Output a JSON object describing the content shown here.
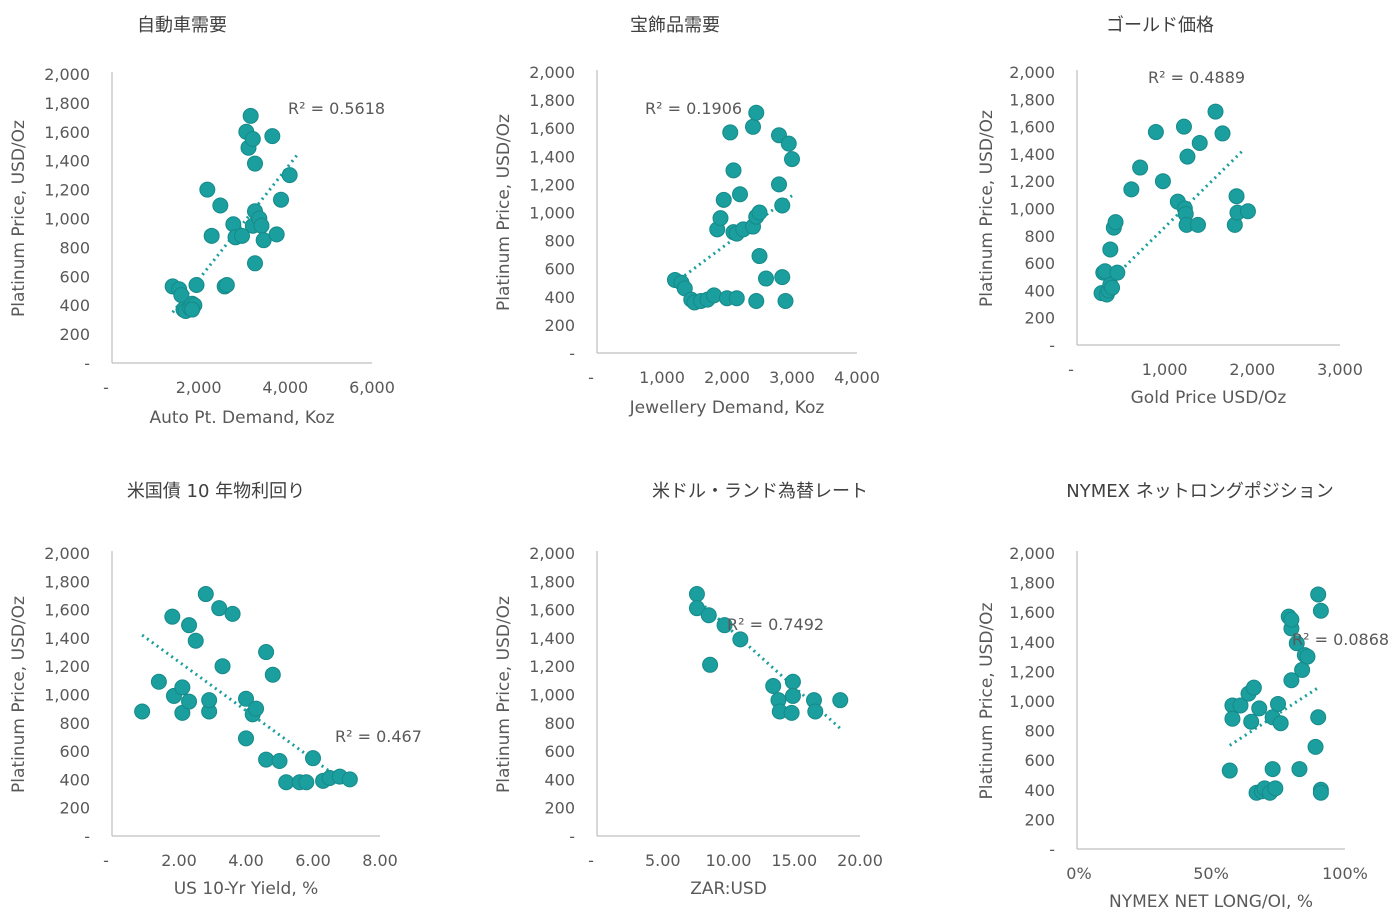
{
  "chart_data": [
    {
      "type": "scatter",
      "title": "自動車需要",
      "xlabel": "Auto Pt. Demand, Koz",
      "ylabel": "Platinum Price, USD/Oz",
      "xlim": [
        0,
        6000
      ],
      "ylim": [
        0,
        2000
      ],
      "xticks": [
        "-",
        "2,000",
        "4,000",
        "6,000"
      ],
      "yticks": [
        "-",
        "200",
        "400",
        "600",
        "800",
        "1,000",
        "1,200",
        "1,400",
        "1,600",
        "1,800",
        "2,000"
      ],
      "r2_label": "R² = 0.5618",
      "trendline": {
        "x": [
          1400,
          4300
        ],
        "y": [
          350,
          1450
        ]
      },
      "points": [
        [
          1400,
          530
        ],
        [
          1550,
          510
        ],
        [
          1600,
          470
        ],
        [
          1650,
          370
        ],
        [
          1700,
          360
        ],
        [
          1800,
          380
        ],
        [
          1850,
          410
        ],
        [
          1900,
          400
        ],
        [
          1950,
          540
        ],
        [
          1850,
          370
        ],
        [
          2200,
          1200
        ],
        [
          2300,
          880
        ],
        [
          2500,
          1090
        ],
        [
          2600,
          530
        ],
        [
          2650,
          540
        ],
        [
          2800,
          960
        ],
        [
          2850,
          870
        ],
        [
          3000,
          880
        ],
        [
          3100,
          1600
        ],
        [
          3150,
          1490
        ],
        [
          3200,
          1710
        ],
        [
          3250,
          1550
        ],
        [
          3300,
          1380
        ],
        [
          3250,
          950
        ],
        [
          3300,
          1050
        ],
        [
          3400,
          1000
        ],
        [
          3450,
          950
        ],
        [
          3500,
          850
        ],
        [
          3300,
          690
        ],
        [
          3700,
          1570
        ],
        [
          3800,
          890
        ],
        [
          3900,
          1130
        ],
        [
          4100,
          1300
        ]
      ]
    },
    {
      "type": "scatter",
      "title": "宝飾品需要",
      "xlabel": "Jewellery Demand, Koz",
      "ylabel": "Platinum Price, USD/Oz",
      "xlim": [
        0,
        4000
      ],
      "ylim": [
        0,
        2000
      ],
      "xticks": [
        "-",
        "1,000",
        "2,000",
        "3,000",
        "4,000"
      ],
      "yticks": [
        "-",
        "200",
        "400",
        "600",
        "800",
        "1,000",
        "1,200",
        "1,400",
        "1,600",
        "1,800",
        "2,000"
      ],
      "r2_label": "R² = 0.1906",
      "trendline": {
        "x": [
          1200,
          3000
        ],
        "y": [
          500,
          1120
        ]
      },
      "points": [
        [
          1200,
          520
        ],
        [
          1300,
          500
        ],
        [
          1350,
          460
        ],
        [
          1450,
          380
        ],
        [
          1500,
          360
        ],
        [
          1600,
          370
        ],
        [
          1700,
          380
        ],
        [
          1800,
          410
        ],
        [
          1850,
          880
        ],
        [
          1900,
          960
        ],
        [
          1950,
          1090
        ],
        [
          2000,
          390
        ],
        [
          2050,
          1570
        ],
        [
          2100,
          860
        ],
        [
          2100,
          1300
        ],
        [
          2150,
          850
        ],
        [
          2150,
          390
        ],
        [
          2200,
          1130
        ],
        [
          2250,
          880
        ],
        [
          2400,
          900
        ],
        [
          2400,
          1610
        ],
        [
          2450,
          1710
        ],
        [
          2450,
          370
        ],
        [
          2450,
          970
        ],
        [
          2500,
          1000
        ],
        [
          2500,
          690
        ],
        [
          2600,
          530
        ],
        [
          2800,
          1550
        ],
        [
          2800,
          1200
        ],
        [
          2850,
          540
        ],
        [
          2850,
          1050
        ],
        [
          2900,
          370
        ],
        [
          2950,
          1490
        ],
        [
          3000,
          1380
        ]
      ]
    },
    {
      "type": "scatter",
      "title": "ゴールド価格",
      "xlabel": "Gold Price USD/Oz",
      "ylabel": "Platinum Price, USD/Oz",
      "xlim": [
        0,
        3000
      ],
      "ylim": [
        0,
        2000
      ],
      "xticks": [
        "-",
        "1,000",
        "2,000",
        "3,000"
      ],
      "yticks": [
        "-",
        "200",
        "400",
        "600",
        "800",
        "1,000",
        "1,200",
        "1,400",
        "1,600",
        "1,800",
        "2,000"
      ],
      "r2_label": "R² = 0.4889",
      "trendline": {
        "x": [
          300,
          1900
        ],
        "y": [
          420,
          1430
        ]
      },
      "points": [
        [
          280,
          380
        ],
        [
          300,
          530
        ],
        [
          320,
          540
        ],
        [
          340,
          370
        ],
        [
          360,
          400
        ],
        [
          380,
          440
        ],
        [
          400,
          420
        ],
        [
          380,
          700
        ],
        [
          420,
          860
        ],
        [
          440,
          900
        ],
        [
          460,
          530
        ],
        [
          620,
          1140
        ],
        [
          720,
          1300
        ],
        [
          900,
          1560
        ],
        [
          980,
          1200
        ],
        [
          1150,
          1050
        ],
        [
          1220,
          1600
        ],
        [
          1230,
          1000
        ],
        [
          1240,
          960
        ],
        [
          1250,
          880
        ],
        [
          1260,
          1380
        ],
        [
          1380,
          880
        ],
        [
          1400,
          1480
        ],
        [
          1580,
          1710
        ],
        [
          1660,
          1550
        ],
        [
          1800,
          880
        ],
        [
          1820,
          1090
        ],
        [
          1830,
          970
        ],
        [
          1950,
          980
        ]
      ]
    },
    {
      "type": "scatter",
      "title": "米国債 10 年物利回り",
      "xlabel": "US 10-Yr Yield, %",
      "ylabel": "Platinum Price, USD/Oz",
      "xlim": [
        0,
        8
      ],
      "ylim": [
        0,
        2000
      ],
      "xticks": [
        "-",
        "2.00",
        "4.00",
        "6.00",
        "8.00"
      ],
      "yticks": [
        "-",
        "200",
        "400",
        "600",
        "800",
        "1,000",
        "1,200",
        "1,400",
        "1,600",
        "1,800",
        "2,000"
      ],
      "r2_label": "R² = 0.467",
      "trendline": {
        "x": [
          0.9,
          7.0
        ],
        "y": [
          1420,
          370
        ]
      },
      "points": [
        [
          0.9,
          880
        ],
        [
          1.4,
          1090
        ],
        [
          1.8,
          1550
        ],
        [
          1.85,
          990
        ],
        [
          2.1,
          1050
        ],
        [
          2.1,
          870
        ],
        [
          2.3,
          950
        ],
        [
          2.3,
          1490
        ],
        [
          2.5,
          1380
        ],
        [
          2.8,
          1710
        ],
        [
          2.9,
          880
        ],
        [
          2.9,
          960
        ],
        [
          3.2,
          1610
        ],
        [
          3.3,
          1200
        ],
        [
          3.6,
          1570
        ],
        [
          4.0,
          970
        ],
        [
          4.0,
          690
        ],
        [
          4.2,
          860
        ],
        [
          4.3,
          900
        ],
        [
          4.6,
          540
        ],
        [
          4.6,
          1300
        ],
        [
          4.8,
          1140
        ],
        [
          5.0,
          530
        ],
        [
          5.2,
          380
        ],
        [
          5.6,
          380
        ],
        [
          5.8,
          380
        ],
        [
          6.0,
          550
        ],
        [
          6.3,
          390
        ],
        [
          6.5,
          410
        ],
        [
          6.8,
          420
        ],
        [
          7.1,
          400
        ]
      ]
    },
    {
      "type": "scatter",
      "title": "米ドル・ランド為替レート",
      "xlabel": "ZAR:USD",
      "ylabel": "Platinum Price, USD/Oz",
      "xlim": [
        0,
        20
      ],
      "ylim": [
        0,
        2000
      ],
      "xticks": [
        "-",
        "5.00",
        "10.00",
        "15.00",
        "20.00"
      ],
      "yticks": [
        "-",
        "200",
        "400",
        "600",
        "800",
        "1,000",
        "1,200",
        "1,400",
        "1,600",
        "1,800",
        "2,000"
      ],
      "r2_label": "R² = 0.7492",
      "trendline": {
        "x": [
          7.5,
          18.5
        ],
        "y": [
          1680,
          760
        ]
      },
      "points": [
        [
          7.6,
          1710
        ],
        [
          7.6,
          1610
        ],
        [
          8.5,
          1560
        ],
        [
          8.6,
          1210
        ],
        [
          9.7,
          1490
        ],
        [
          10.9,
          1390
        ],
        [
          13.4,
          1060
        ],
        [
          13.8,
          960
        ],
        [
          13.9,
          880
        ],
        [
          14.9,
          1090
        ],
        [
          14.9,
          990
        ],
        [
          14.8,
          870
        ],
        [
          16.5,
          960
        ],
        [
          16.6,
          880
        ],
        [
          18.5,
          960
        ]
      ]
    },
    {
      "type": "scatter",
      "title": "NYMEX ネットロングポジション",
      "xlabel": "NYMEX  NET LONG/OI, %",
      "ylabel": "Platinum Price, USD/Oz",
      "xlim": [
        0,
        100
      ],
      "ylim": [
        0,
        2000
      ],
      "xticks": [
        "0%",
        "50%",
        "100%"
      ],
      "yticks": [
        "-",
        "200",
        "400",
        "600",
        "800",
        "1,000",
        "1,200",
        "1,400",
        "1,600",
        "1,800",
        "2,000"
      ],
      "r2_label": "R² = 0.0868",
      "trendline": {
        "x": [
          57,
          90
        ],
        "y": [
          700,
          1090
        ]
      },
      "points": [
        [
          57,
          530
        ],
        [
          58,
          970
        ],
        [
          58,
          880
        ],
        [
          61,
          970
        ],
        [
          64,
          1050
        ],
        [
          65,
          860
        ],
        [
          66,
          1090
        ],
        [
          67,
          380
        ],
        [
          68,
          950
        ],
        [
          69,
          390
        ],
        [
          70,
          410
        ],
        [
          72,
          380
        ],
        [
          73,
          540
        ],
        [
          73,
          890
        ],
        [
          74,
          410
        ],
        [
          75,
          980
        ],
        [
          76,
          850
        ],
        [
          79,
          1570
        ],
        [
          80,
          1490
        ],
        [
          80,
          1140
        ],
        [
          80,
          1550
        ],
        [
          82,
          1390
        ],
        [
          83,
          540
        ],
        [
          84,
          1210
        ],
        [
          85,
          1310
        ],
        [
          86,
          1300
        ],
        [
          89,
          690
        ],
        [
          90,
          890
        ],
        [
          90,
          1720
        ],
        [
          91,
          1610
        ],
        [
          91,
          400
        ],
        [
          91,
          380
        ]
      ]
    }
  ]
}
